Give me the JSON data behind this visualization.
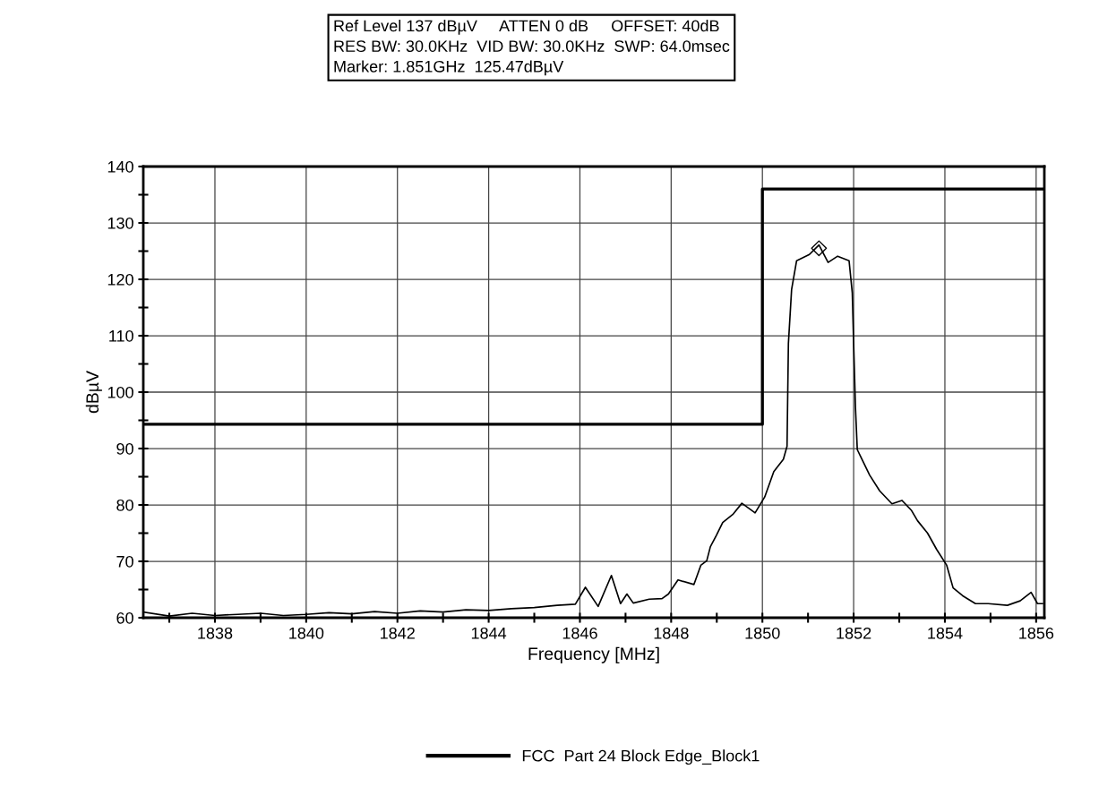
{
  "chart_data": {
    "type": "line",
    "annotations": [
      "Ref Level 137 dBµV     ATTEN 0 dB     OFFSET: 40dB",
      "RES BW: 30.0KHz  VID BW: 30.0KHz  SWP: 64.0msec",
      "Marker: 1.851GHz  125.47dBµV"
    ],
    "xlabel": "Frequency [MHz]",
    "ylabel": "dBµV",
    "xlim": [
      1836.43,
      1856.18
    ],
    "ylim": [
      60,
      140
    ],
    "xticks": [
      {
        "value": 1837,
        "label": null
      },
      1838,
      {
        "value": 1839,
        "label": null
      },
      1840,
      {
        "value": 1841,
        "label": null
      },
      1842,
      {
        "value": 1843,
        "label": null
      },
      1844,
      {
        "value": 1845,
        "label": null
      },
      1846,
      {
        "value": 1847,
        "label": null
      },
      1848,
      {
        "value": 1849,
        "label": null
      },
      1850,
      {
        "value": 1851,
        "label": null
      },
      1852,
      {
        "value": 1853,
        "label": null
      },
      1854,
      {
        "value": 1855,
        "label": null
      },
      1856
    ],
    "yticks": [
      60,
      {
        "value": 65,
        "label": null
      },
      70,
      {
        "value": 75,
        "label": null
      },
      80,
      {
        "value": 85,
        "label": null
      },
      90,
      {
        "value": 95,
        "label": null
      },
      100,
      {
        "value": 105,
        "label": null
      },
      110,
      {
        "value": 115,
        "label": null
      },
      120,
      {
        "value": 125,
        "label": null
      },
      130,
      {
        "value": 135,
        "label": null
      },
      140
    ],
    "grid": true,
    "legend": "bottom",
    "series": [
      {
        "color": "#000000",
        "x": [
          1836.45,
          1837,
          1837.5,
          1838,
          1838.5,
          1839,
          1839.5,
          1840,
          1840.5,
          1841,
          1841.5,
          1842,
          1842.5,
          1843,
          1843.5,
          1844,
          1844.5,
          1845,
          1845.5,
          1845.9,
          1846.12,
          1846.4,
          1846.69,
          1846.89,
          1847.03,
          1847.17,
          1847.52,
          1847.8,
          1847.94,
          1848.15,
          1848.5,
          1848.65,
          1848.78,
          1848.86,
          1848.99,
          1849.13,
          1849.35,
          1849.55,
          1849.84,
          1850.05,
          1850.25,
          1850.46,
          1850.54,
          1850.57,
          1850.64,
          1850.75,
          1851.03,
          1851.24,
          1851.44,
          1851.65,
          1851.9,
          1851.97,
          1852.0,
          1852.04,
          1852.08,
          1852.35,
          1852.57,
          1852.84,
          1853.06,
          1853.27,
          1853.4,
          1853.62,
          1853.82,
          1854.04,
          1854.18,
          1854.39,
          1854.67,
          1854.95,
          1855.37,
          1855.65,
          1855.89,
          1856.03,
          1856.14
        ],
        "values": [
          61,
          60.3,
          60.8,
          60.4,
          60.6,
          60.8,
          60.4,
          60.6,
          60.9,
          60.7,
          61.1,
          60.8,
          61.2,
          61.0,
          61.4,
          61.3,
          61.6,
          61.8,
          62.2,
          62.4,
          65.4,
          62.0,
          67.5,
          62.5,
          64.2,
          62.6,
          63.3,
          63.4,
          64.2,
          66.7,
          65.9,
          69.3,
          70.1,
          72.6,
          74.6,
          76.9,
          78.3,
          80.3,
          78.6,
          81.4,
          85.9,
          88.1,
          90.4,
          108.6,
          118.2,
          123.3,
          124.4,
          126.1,
          123,
          124.1,
          123.3,
          117.6,
          108.6,
          97.2,
          89.8,
          85.3,
          82.5,
          80.2,
          80.8,
          79.0,
          77.2,
          75.0,
          72.1,
          69.3,
          65.3,
          63.9,
          62.5,
          62.5,
          62.2,
          63.0,
          64.5,
          62.5,
          62.5
        ]
      },
      {
        "type": "step",
        "name": "FCC  Part 24 Block Edge_Block1",
        "color": "#000000",
        "x": [
          1836.43,
          1850,
          1856.18
        ],
        "values": [
          94.3,
          136,
          136
        ]
      },
      {
        "type": "scatter",
        "color": "#000000",
        "marker": "diamond",
        "x": [
          1851.24
        ],
        "values": [
          125.5
        ]
      }
    ]
  }
}
